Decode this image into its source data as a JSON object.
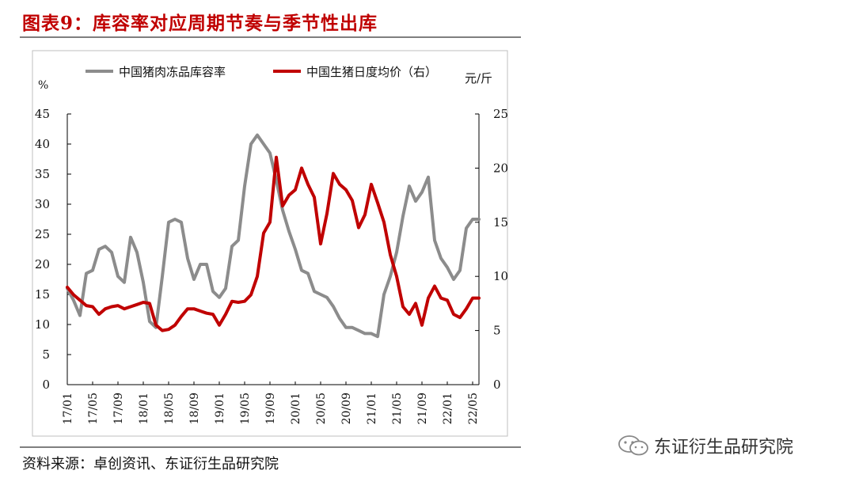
{
  "figure": {
    "title": "图表9：库容率对应周期节奏与季节性出库",
    "source": "资料来源：卓创资讯、东证衍生品研究院",
    "watermark": "东证衍生品研究院"
  },
  "chart_data": {
    "type": "line",
    "title": "",
    "y_left_unit": "%",
    "y_right_unit": "元/斤",
    "y_left_lim": [
      0,
      45
    ],
    "y_right_lim": [
      0,
      25
    ],
    "y_left_ticks": [
      0,
      5,
      10,
      15,
      20,
      25,
      30,
      35,
      40,
      45
    ],
    "y_right_ticks": [
      0,
      5,
      10,
      15,
      20,
      25
    ],
    "x_ticks": [
      "17/01",
      "17/05",
      "17/09",
      "18/01",
      "18/05",
      "18/09",
      "19/01",
      "19/05",
      "19/09",
      "20/01",
      "20/05",
      "20/09",
      "21/01",
      "21/05",
      "21/09",
      "22/01",
      "22/05"
    ],
    "x_range": [
      "2017-01",
      "2022-06"
    ],
    "legend_position": "top",
    "series": [
      {
        "name": "中国猪肉冻品库容率",
        "axis": "left",
        "color": "#8c8c8c",
        "points": [
          [
            "2017-01",
            16
          ],
          [
            "2017-02",
            14
          ],
          [
            "2017-03",
            11.5
          ],
          [
            "2017-04",
            18.5
          ],
          [
            "2017-05",
            19
          ],
          [
            "2017-06",
            22.5
          ],
          [
            "2017-07",
            23
          ],
          [
            "2017-08",
            22
          ],
          [
            "2017-09",
            18
          ],
          [
            "2017-10",
            17
          ],
          [
            "2017-11",
            24.5
          ],
          [
            "2017-12",
            22
          ],
          [
            "2018-01",
            17
          ],
          [
            "2018-02",
            10.5
          ],
          [
            "2018-03",
            9.5
          ],
          [
            "2018-04",
            18
          ],
          [
            "2018-05",
            27
          ],
          [
            "2018-06",
            27.5
          ],
          [
            "2018-07",
            27
          ],
          [
            "2018-08",
            21
          ],
          [
            "2018-09",
            17.5
          ],
          [
            "2018-10",
            20
          ],
          [
            "2018-11",
            20
          ],
          [
            "2018-12",
            15.5
          ],
          [
            "2019-01",
            14.5
          ],
          [
            "2019-02",
            16
          ],
          [
            "2019-03",
            23
          ],
          [
            "2019-04",
            24
          ],
          [
            "2019-05",
            33
          ],
          [
            "2019-06",
            40
          ],
          [
            "2019-07",
            41.5
          ],
          [
            "2019-08",
            40
          ],
          [
            "2019-09",
            38.5
          ],
          [
            "2019-10",
            34
          ],
          [
            "2019-11",
            29
          ],
          [
            "2019-12",
            25.5
          ],
          [
            "2020-01",
            22.5
          ],
          [
            "2020-02",
            19
          ],
          [
            "2020-03",
            18.5
          ],
          [
            "2020-04",
            15.5
          ],
          [
            "2020-05",
            15
          ],
          [
            "2020-06",
            14.5
          ],
          [
            "2020-07",
            13
          ],
          [
            "2020-08",
            11
          ],
          [
            "2020-09",
            9.5
          ],
          [
            "2020-10",
            9.5
          ],
          [
            "2020-11",
            9
          ],
          [
            "2020-12",
            8.5
          ],
          [
            "2021-01",
            8.5
          ],
          [
            "2021-02",
            8
          ],
          [
            "2021-03",
            15
          ],
          [
            "2021-04",
            18
          ],
          [
            "2021-05",
            22
          ],
          [
            "2021-06",
            28
          ],
          [
            "2021-07",
            33
          ],
          [
            "2021-08",
            30.5
          ],
          [
            "2021-09",
            32
          ],
          [
            "2021-10",
            34.5
          ],
          [
            "2021-11",
            24
          ],
          [
            "2021-12",
            21
          ],
          [
            "2022-01",
            19.5
          ],
          [
            "2022-02",
            17.5
          ],
          [
            "2022-03",
            19
          ],
          [
            "2022-04",
            26
          ],
          [
            "2022-05",
            27.5
          ],
          [
            "2022-06",
            27.5
          ]
        ]
      },
      {
        "name": "中国生猪日度均价（右）",
        "axis": "right",
        "color": "#c00000",
        "points": [
          [
            "2017-01",
            9
          ],
          [
            "2017-02",
            8.3
          ],
          [
            "2017-03",
            7.8
          ],
          [
            "2017-04",
            7.3
          ],
          [
            "2017-05",
            7.2
          ],
          [
            "2017-06",
            6.5
          ],
          [
            "2017-07",
            7
          ],
          [
            "2017-08",
            7.2
          ],
          [
            "2017-09",
            7.3
          ],
          [
            "2017-10",
            7
          ],
          [
            "2017-11",
            7.2
          ],
          [
            "2017-12",
            7.4
          ],
          [
            "2018-01",
            7.6
          ],
          [
            "2018-02",
            7.5
          ],
          [
            "2018-03",
            5.5
          ],
          [
            "2018-04",
            5
          ],
          [
            "2018-05",
            5.1
          ],
          [
            "2018-06",
            5.5
          ],
          [
            "2018-07",
            6.3
          ],
          [
            "2018-08",
            7
          ],
          [
            "2018-09",
            7
          ],
          [
            "2018-10",
            6.8
          ],
          [
            "2018-11",
            6.6
          ],
          [
            "2018-12",
            6.5
          ],
          [
            "2019-01",
            5.5
          ],
          [
            "2019-02",
            6.5
          ],
          [
            "2019-03",
            7.7
          ],
          [
            "2019-04",
            7.6
          ],
          [
            "2019-05",
            7.7
          ],
          [
            "2019-06",
            8.3
          ],
          [
            "2019-07",
            10
          ],
          [
            "2019-08",
            14
          ],
          [
            "2019-09",
            15
          ],
          [
            "2019-10",
            21
          ],
          [
            "2019-11",
            16.5
          ],
          [
            "2019-12",
            17.5
          ],
          [
            "2020-01",
            18
          ],
          [
            "2020-02",
            20
          ],
          [
            "2020-03",
            18.5
          ],
          [
            "2020-04",
            17.3
          ],
          [
            "2020-05",
            13
          ],
          [
            "2020-06",
            15.8
          ],
          [
            "2020-07",
            19.5
          ],
          [
            "2020-08",
            18.5
          ],
          [
            "2020-09",
            18
          ],
          [
            "2020-10",
            17
          ],
          [
            "2020-11",
            14.5
          ],
          [
            "2020-12",
            15.7
          ],
          [
            "2021-01",
            18.5
          ],
          [
            "2021-02",
            16.8
          ],
          [
            "2021-03",
            15
          ],
          [
            "2021-04",
            12
          ],
          [
            "2021-05",
            10
          ],
          [
            "2021-06",
            7.2
          ],
          [
            "2021-07",
            6.5
          ],
          [
            "2021-08",
            7.5
          ],
          [
            "2021-09",
            5.5
          ],
          [
            "2021-10",
            8
          ],
          [
            "2021-11",
            9.1
          ],
          [
            "2021-12",
            8
          ],
          [
            "2022-01",
            7.8
          ],
          [
            "2022-02",
            6.5
          ],
          [
            "2022-03",
            6.2
          ],
          [
            "2022-04",
            7
          ],
          [
            "2022-05",
            8
          ],
          [
            "2022-06",
            8
          ]
        ]
      }
    ]
  }
}
